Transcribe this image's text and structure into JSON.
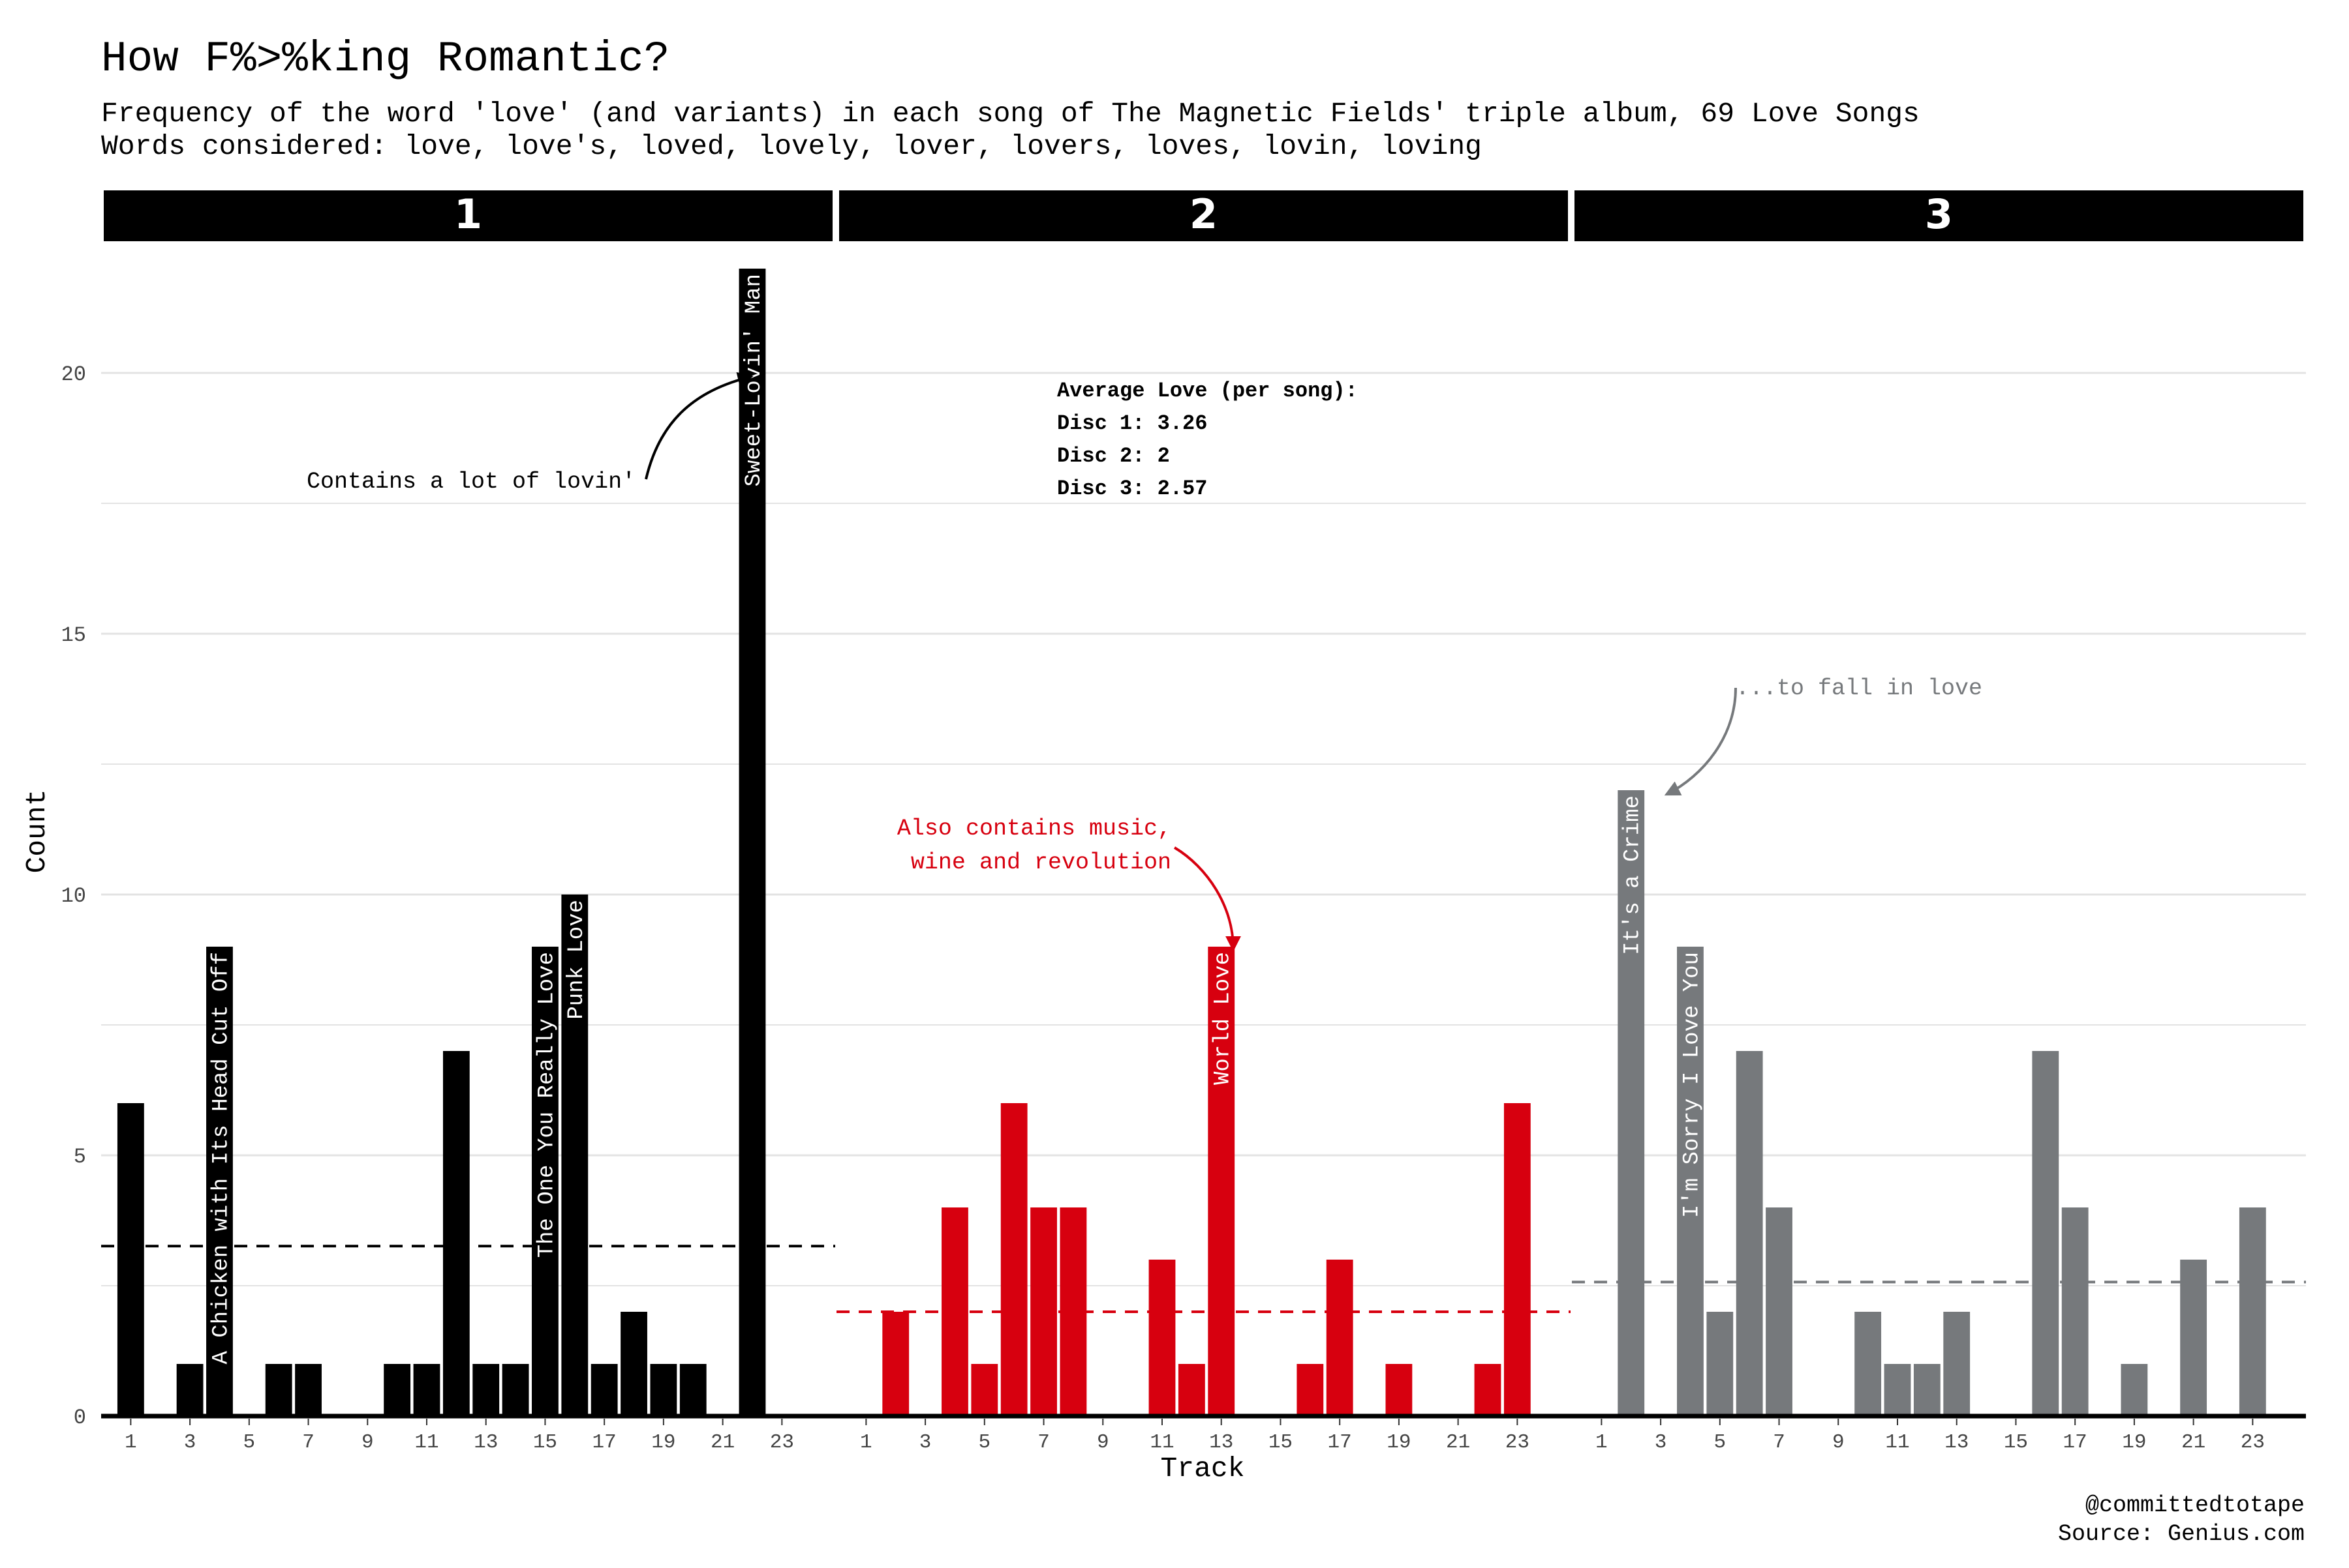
{
  "header": {
    "title": "How F%>%king Romantic?",
    "subtitle_line1": "Frequency of the word 'love' (and variants) in each song of The Magnetic Fields' triple album, 69 Love Songs",
    "subtitle_line2": "Words considered: love, love's, loved, lovely, lover, lovers, loves, lovin, loving"
  },
  "footer": {
    "handle": "@committedtotape",
    "source": "Source: Genius.com"
  },
  "average_box": {
    "heading": "Average Love (per song):",
    "lines": [
      "Disc 1: 3.26",
      "Disc 2: 2",
      "Disc 3: 2.57"
    ]
  },
  "annotations": {
    "disc1": "Contains a lot of lovin'",
    "disc2_line1": "Also contains music,",
    "disc2_line2": "wine and revolution",
    "disc3": "...to fall in love"
  },
  "colors": {
    "disc1": "#000000",
    "disc2": "#d7000f",
    "disc3": "#76797c",
    "strip_bg": "#000000",
    "strip_text": "#ffffff",
    "grid": "#e3e3e3"
  },
  "chart_data": {
    "type": "bar",
    "xlabel": "Track",
    "ylabel": "Count",
    "ylim": [
      0,
      22
    ],
    "yticks": [
      0,
      5,
      10,
      15,
      20
    ],
    "xlim": [
      0,
      24.8
    ],
    "xticks": [
      1,
      3,
      5,
      7,
      9,
      11,
      13,
      15,
      17,
      19,
      21,
      23
    ],
    "grid": true,
    "legend": "none",
    "facets": [
      {
        "name": "1",
        "average": 3.26,
        "values": [
          6,
          0,
          1,
          9,
          0,
          1,
          1,
          0,
          0,
          1,
          1,
          7,
          1,
          1,
          9,
          10,
          1,
          2,
          1,
          1,
          0,
          22,
          0
        ],
        "labels": [
          {
            "track": 4,
            "title": "A Chicken with Its Head Cut Off"
          },
          {
            "track": 15,
            "title": "The One You Really Love"
          },
          {
            "track": 16,
            "title": "Punk Love"
          },
          {
            "track": 22,
            "title": "Sweet-Lovin' Man"
          }
        ]
      },
      {
        "name": "2",
        "average": 2,
        "values": [
          0,
          2,
          0,
          4,
          1,
          6,
          4,
          4,
          0,
          0,
          3,
          1,
          9,
          0,
          0,
          1,
          3,
          0,
          1,
          0,
          0,
          1,
          6
        ],
        "labels": [
          {
            "track": 13,
            "title": "World Love"
          }
        ]
      },
      {
        "name": "3",
        "average": 2.57,
        "values": [
          0,
          12,
          0,
          9,
          2,
          7,
          4,
          0,
          0,
          2,
          1,
          1,
          2,
          0,
          0,
          7,
          4,
          0,
          1,
          0,
          3,
          0,
          4
        ],
        "labels": [
          {
            "track": 2,
            "title": "It's a Crime"
          },
          {
            "track": 4,
            "title": "I'm Sorry I Love You"
          }
        ]
      }
    ]
  }
}
